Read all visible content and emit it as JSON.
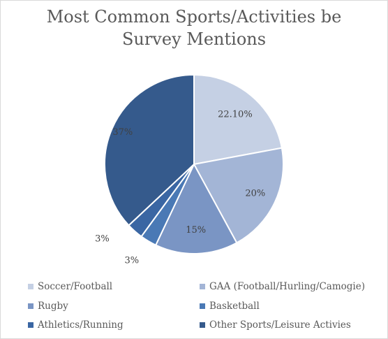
{
  "chart_data": {
    "type": "pie",
    "title": "Most Common Sports/Activities be Survey Mentions",
    "title_lines": [
      "Most Common Sports/Activities be",
      "Survey Mentions"
    ],
    "categories": [
      "Soccer/Football",
      "GAA (Football/Hurling/Camogie)",
      "Rugby",
      "Basketball",
      "Athletics/Running",
      "Other Sports/Leisure Activies"
    ],
    "values": [
      22.1,
      20,
      15,
      3,
      3,
      37
    ],
    "data_labels": [
      "22.10%",
      "20%",
      "15%",
      "3%",
      "3%",
      "37%"
    ],
    "colors": [
      "#c5d0e4",
      "#a3b5d6",
      "#7a95c4",
      "#4a79b5",
      "#3a66a3",
      "#355a8c"
    ],
    "legend_position": "bottom"
  }
}
